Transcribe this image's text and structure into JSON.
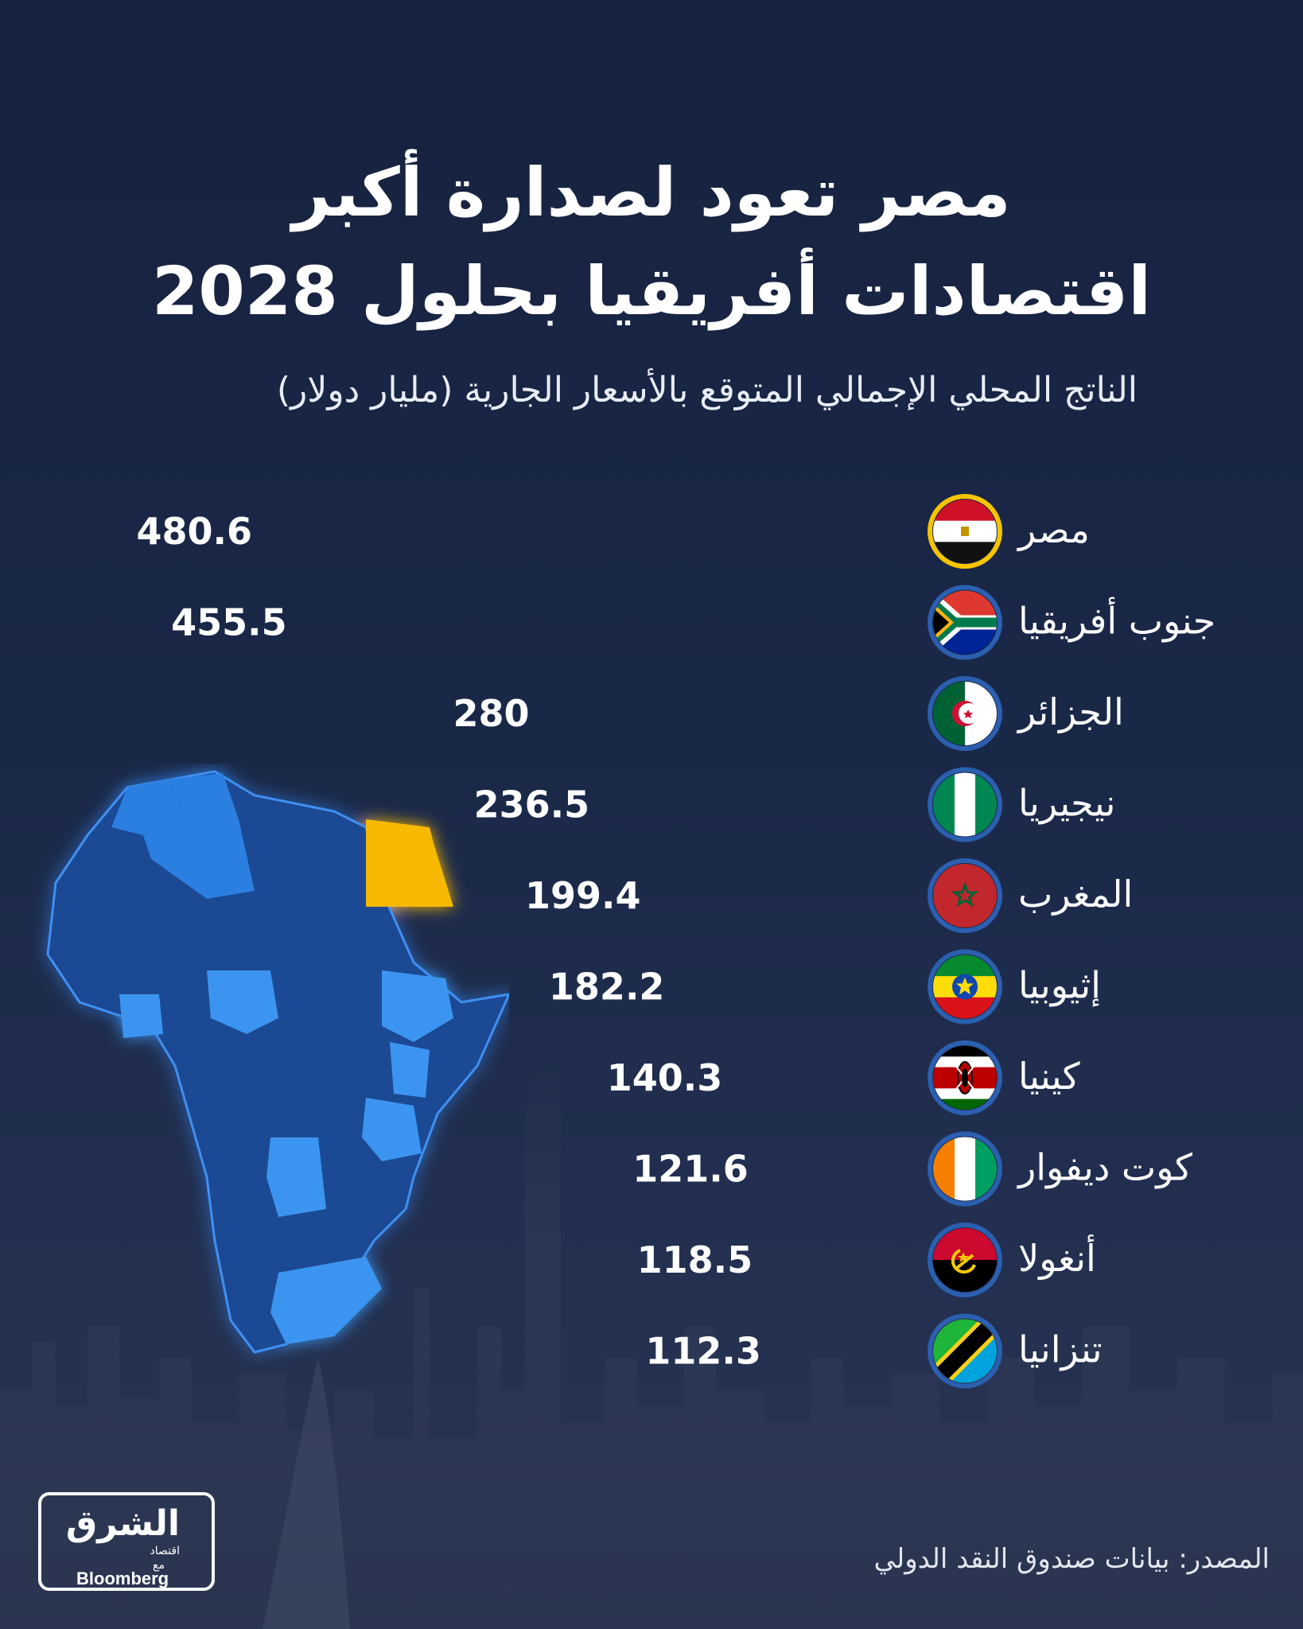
{
  "header": {
    "title_line1": "مصر تعود لصدارة أكبر",
    "title_line2": "اقتصادات أفريقيا بحلول 2028",
    "subtitle": "الناتج المحلي الإجمالي المتوقع بالأسعار الجارية (مليار دولار)"
  },
  "chart_data": {
    "type": "bar",
    "orientation": "horizontal",
    "categories": [
      "مصر",
      "جنوب أفريقيا",
      "الجزائر",
      "نيجيريا",
      "المغرب",
      "إثيوبيا",
      "كينيا",
      "كوت ديفوار",
      "أنغولا",
      "تنزانيا"
    ],
    "values": [
      480.6,
      455.5,
      280,
      236.5,
      199.4,
      182.2,
      140.3,
      121.6,
      118.5,
      112.3
    ],
    "value_labels": [
      "480.6",
      "455.5",
      "280",
      "236.5",
      "199.4",
      "182.2",
      "140.3",
      "121.6",
      "118.5",
      "112.3"
    ],
    "highlight_color": "#f6c500",
    "bar_color": "#1e86d8",
    "flags": [
      "egypt-flag",
      "south-africa-flag",
      "algeria-flag",
      "nigeria-flag",
      "morocco-flag",
      "ethiopia-flag",
      "kenya-flag",
      "cote-divoire-flag",
      "angola-flag",
      "tanzania-flag"
    ],
    "grid": false,
    "legend": "none"
  },
  "footer": {
    "source": "المصدر: بيانات صندوق النقد الدولي",
    "logo_brand": "الشرق",
    "logo_sub": "اقتصاد",
    "logo_with": "مع",
    "logo_partner": "Bloomberg"
  },
  "colors": {
    "background": "#1a2848",
    "map_fill": "#1c66c4",
    "egypt_highlight": "#f6b800"
  }
}
